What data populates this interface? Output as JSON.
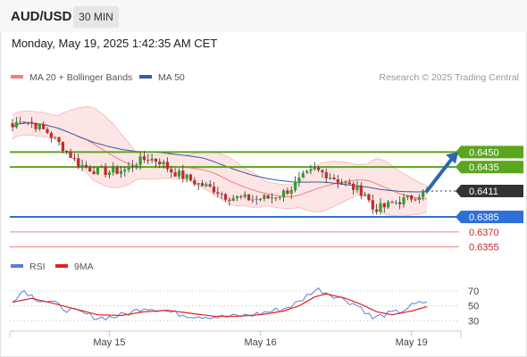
{
  "header": {
    "symbol": "AUD/USD",
    "timeframe": "30 MIN",
    "datetime": "Monday, May 19, 2025 1:42:35 AM CET"
  },
  "colors": {
    "ma20": "#f08080",
    "ma50": "#3a5a9a",
    "bollinger_fill": "#fde0e0",
    "candle_up": "#2e9e2e",
    "candle_down": "#c62828",
    "resistance": "#5aa61e",
    "support": "#2e6fd8",
    "minor_support": "#f08080",
    "rsi": "#5b7fd6",
    "rsi_ma": "#e02020",
    "arrow": "#2e66b0",
    "current_price_bg": "#333333"
  },
  "chart_data": [
    {
      "type": "candlestick",
      "legend": [
        {
          "name": "MA 20 + Bollinger Bands",
          "color": "#f08080"
        },
        {
          "name": "MA 50",
          "color": "#3a5a9a"
        }
      ],
      "legend_placement": "top-left",
      "credit": "Research © 2025 Trading Central",
      "x_tick_labels": [
        {
          "label": "May 15",
          "index": 25
        },
        {
          "label": "May 16",
          "index": 64
        },
        {
          "label": "May 19",
          "index": 103
        }
      ],
      "n_bars": 108,
      "close_anchors": [
        [
          0,
          0.6475
        ],
        [
          2,
          0.6484
        ],
        [
          5,
          0.6479
        ],
        [
          9,
          0.647
        ],
        [
          13,
          0.6455
        ],
        [
          17,
          0.6438
        ],
        [
          21,
          0.6432
        ],
        [
          25,
          0.643
        ],
        [
          29,
          0.6432
        ],
        [
          32,
          0.644
        ],
        [
          35,
          0.6444
        ],
        [
          38,
          0.6441
        ],
        [
          41,
          0.6431
        ],
        [
          45,
          0.6424
        ],
        [
          48,
          0.6418
        ],
        [
          52,
          0.6413
        ],
        [
          55,
          0.6406
        ],
        [
          58,
          0.6404
        ],
        [
          62,
          0.6403
        ],
        [
          66,
          0.6404
        ],
        [
          69,
          0.6407
        ],
        [
          72,
          0.6414
        ],
        [
          75,
          0.6425
        ],
        [
          78,
          0.6432
        ],
        [
          81,
          0.6428
        ],
        [
          84,
          0.6422
        ],
        [
          87,
          0.6416
        ],
        [
          91,
          0.6409
        ],
        [
          93,
          0.6393
        ],
        [
          96,
          0.6395
        ],
        [
          99,
          0.64
        ],
        [
          102,
          0.6403
        ],
        [
          105,
          0.6408
        ],
        [
          107,
          0.6411
        ]
      ],
      "levels": [
        {
          "price": 0.645,
          "label": "0.6450",
          "kind": "resistance",
          "style": "box"
        },
        {
          "price": 0.6435,
          "label": "0.6435",
          "kind": "resistance",
          "style": "box"
        },
        {
          "price": 0.6411,
          "label": "0.6411",
          "kind": "current",
          "style": "dotted"
        },
        {
          "price": 0.6385,
          "label": "0.6385",
          "kind": "support",
          "style": "box"
        },
        {
          "price": 0.637,
          "label": "0.6370",
          "kind": "minor_support",
          "style": "text"
        },
        {
          "price": 0.6355,
          "label": "0.6355",
          "kind": "minor_support",
          "style": "text"
        }
      ],
      "forecast_arrow": {
        "from_index": 107,
        "from_price": 0.6411,
        "to_price": 0.645
      },
      "ylim": [
        0.6343,
        0.6513
      ]
    },
    {
      "type": "line",
      "panel": "RSI",
      "legend": [
        {
          "name": "RSI",
          "color": "#5b7fd6"
        },
        {
          "name": "9MA",
          "color": "#e02020"
        }
      ],
      "y_ticks": [
        {
          "label": "70",
          "value": 70
        },
        {
          "label": "50",
          "value": 50
        },
        {
          "label": "30",
          "value": 30
        }
      ],
      "ylim": [
        22,
        82
      ],
      "rsi_anchors": [
        [
          0,
          58
        ],
        [
          3,
          71
        ],
        [
          6,
          60
        ],
        [
          10,
          55
        ],
        [
          14,
          45
        ],
        [
          18,
          40
        ],
        [
          22,
          34
        ],
        [
          26,
          35
        ],
        [
          30,
          40
        ],
        [
          34,
          48
        ],
        [
          38,
          45
        ],
        [
          42,
          40
        ],
        [
          46,
          37
        ],
        [
          50,
          36
        ],
        [
          54,
          35
        ],
        [
          58,
          36
        ],
        [
          62,
          38
        ],
        [
          66,
          42
        ],
        [
          70,
          46
        ],
        [
          74,
          55
        ],
        [
          77,
          68
        ],
        [
          79,
          72
        ],
        [
          82,
          66
        ],
        [
          86,
          58
        ],
        [
          90,
          48
        ],
        [
          93,
          33
        ],
        [
          96,
          38
        ],
        [
          100,
          42
        ],
        [
          103,
          50
        ],
        [
          107,
          56
        ]
      ],
      "ma9_anchors": [
        [
          0,
          55
        ],
        [
          5,
          60
        ],
        [
          10,
          54
        ],
        [
          16,
          46
        ],
        [
          22,
          38
        ],
        [
          28,
          37
        ],
        [
          34,
          42
        ],
        [
          40,
          44
        ],
        [
          46,
          40
        ],
        [
          52,
          36
        ],
        [
          58,
          36
        ],
        [
          64,
          38
        ],
        [
          70,
          43
        ],
        [
          74,
          50
        ],
        [
          78,
          62
        ],
        [
          81,
          66
        ],
        [
          86,
          60
        ],
        [
          90,
          52
        ],
        [
          94,
          42
        ],
        [
          98,
          38
        ],
        [
          103,
          43
        ],
        [
          107,
          49
        ]
      ]
    }
  ]
}
